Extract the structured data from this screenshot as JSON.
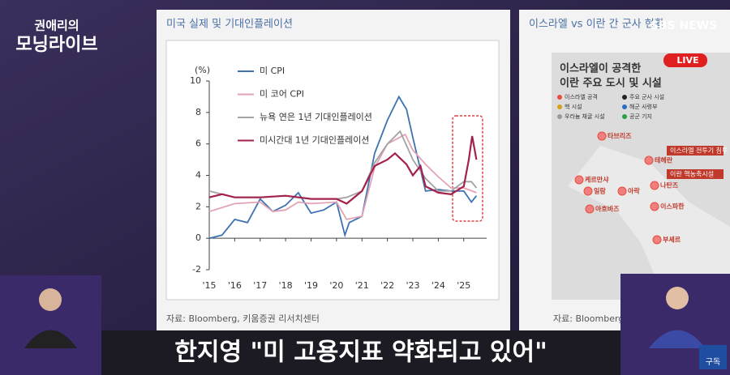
{
  "show": {
    "title_top": "권애리의",
    "title_main": "모닝라이브",
    "caption": "한지영 \"미 고용지표 약화되고 있어\"",
    "logo": "SBS NEWS",
    "live": "LIVE",
    "subscribe": "구독"
  },
  "chart_data": {
    "type": "line",
    "title": "미국 실제 및 기대인플레이션",
    "y_unit": "(%)",
    "source": "자료: Bloomberg, 키움증권 리서치센터",
    "xlim": [
      2015,
      2025.9
    ],
    "ylim": [
      -2,
      10
    ],
    "xticks": [
      {
        "value": 2015,
        "label": "'15"
      },
      {
        "value": 2016,
        "label": "'16"
      },
      {
        "value": 2017,
        "label": "'17"
      },
      {
        "value": 2018,
        "label": "'18"
      },
      {
        "value": 2019,
        "label": "'19"
      },
      {
        "value": 2020,
        "label": "'20"
      },
      {
        "value": 2021,
        "label": "'21"
      },
      {
        "value": 2022,
        "label": "'22"
      },
      {
        "value": 2023,
        "label": "'23"
      },
      {
        "value": 2024,
        "label": "'24"
      },
      {
        "value": 2025,
        "label": "'25"
      }
    ],
    "yticks": [
      -2,
      0,
      2,
      4,
      6,
      8,
      10
    ],
    "series": [
      {
        "name": "미 CPI",
        "color": "#3f72b0",
        "x": [
          2015,
          2015.5,
          2016,
          2016.5,
          2017,
          2017.5,
          2018,
          2018.5,
          2019,
          2019.5,
          2020,
          2020.33,
          2020.5,
          2021,
          2021.5,
          2022,
          2022.45,
          2022.75,
          2023,
          2023.5,
          2024,
          2024.5,
          2025,
          2025.3,
          2025.5
        ],
        "values": [
          0,
          0.2,
          1.2,
          1.0,
          2.5,
          1.7,
          2.1,
          2.9,
          1.6,
          1.8,
          2.3,
          0.2,
          1.0,
          1.4,
          5.4,
          7.5,
          9.0,
          8.2,
          6.4,
          3.0,
          3.1,
          3.0,
          3.0,
          2.3,
          2.7
        ]
      },
      {
        "name": "미 코어 CPI",
        "color": "#e3a3b3",
        "x": [
          2015,
          2016,
          2017,
          2017.5,
          2018,
          2018.5,
          2019,
          2020,
          2020.4,
          2021,
          2021.5,
          2022,
          2022.7,
          2023,
          2023.5,
          2024,
          2024.5,
          2025,
          2025.5
        ],
        "values": [
          1.7,
          2.2,
          2.3,
          1.7,
          1.8,
          2.3,
          2.2,
          2.3,
          1.2,
          1.4,
          4.5,
          6.0,
          6.6,
          5.6,
          4.7,
          3.9,
          3.2,
          3.2,
          2.9
        ]
      },
      {
        "name": "뉴욕 연은 1년 기대인플레이션",
        "color": "#a3a3a3",
        "x": [
          2015,
          2016,
          2017,
          2018,
          2019,
          2020,
          2020.4,
          2021,
          2021.5,
          2022,
          2022.5,
          2023,
          2023.5,
          2024,
          2024.5,
          2025,
          2025.3,
          2025.5
        ],
        "values": [
          3.0,
          2.6,
          2.6,
          2.7,
          2.5,
          2.5,
          2.6,
          3.0,
          4.8,
          6.0,
          6.8,
          5.0,
          3.8,
          3.0,
          3.0,
          3.6,
          3.6,
          3.2
        ]
      },
      {
        "name": "미시간대 1년 기대인플레이션",
        "color": "#a3224c",
        "x": [
          2015,
          2015.5,
          2016,
          2017,
          2018,
          2019,
          2020,
          2020.4,
          2021,
          2021.5,
          2022,
          2022.3,
          2022.75,
          2023,
          2023.3,
          2023.5,
          2024,
          2024.5,
          2025,
          2025.2,
          2025.33,
          2025.5
        ],
        "values": [
          2.6,
          2.8,
          2.6,
          2.6,
          2.7,
          2.5,
          2.5,
          2.2,
          3.0,
          4.6,
          5.0,
          5.4,
          4.7,
          4.0,
          4.6,
          3.3,
          2.9,
          2.8,
          3.3,
          5.0,
          6.5,
          5.0
        ]
      }
    ]
  },
  "map": {
    "title": "이스라엘 vs 이란 간 군사 현황",
    "heading1": "이스라엘이 공격한",
    "heading2": "이란 주요 도시 및 시설",
    "legend": [
      "이스라엘 공격",
      "주요 군사 시설",
      "핵 시설",
      "해군 사령부",
      "우라늄 채굴 시설",
      "공군 기지"
    ],
    "cities": [
      "타브리즈",
      "테헤란",
      "케르만샤",
      "일람",
      "아락",
      "나탄즈",
      "이스파한",
      "아흐바즈",
      "부셰르"
    ],
    "tags": [
      "이스라엘 전투기 침투",
      "이란 핵농축시설"
    ],
    "source": "자료: Bloomberg, 키움증권 리서치센터"
  }
}
